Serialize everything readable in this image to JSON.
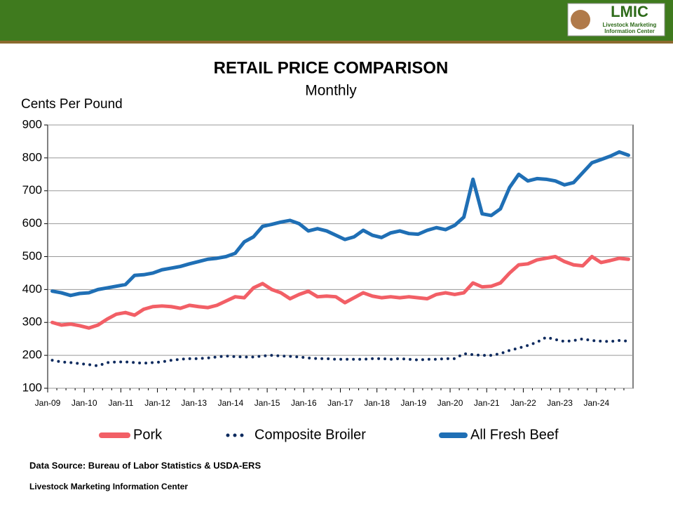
{
  "header": {
    "logo": {
      "name": "LMIC",
      "line1": "Livestock Marketing",
      "line2": "Information Center"
    }
  },
  "chart_data": {
    "type": "line",
    "title": "RETAIL PRICE COMPARISON",
    "subtitle": "Monthly",
    "y_label": "Cents Per Pound",
    "categories": [
      "Jan-09",
      null,
      null,
      null,
      "Jan-10",
      null,
      null,
      null,
      "Jan-11",
      null,
      null,
      null,
      "Jan-12",
      null,
      null,
      null,
      "Jan-13",
      null,
      null,
      null,
      "Jan-14",
      null,
      null,
      null,
      "Jan-15",
      null,
      null,
      null,
      "Jan-16",
      null,
      null,
      null,
      "Jan-17",
      null,
      null,
      null,
      "Jan-18",
      null,
      null,
      null,
      "Jan-19",
      null,
      null,
      null,
      "Jan-20",
      null,
      null,
      null,
      "Jan-21",
      null,
      null,
      null,
      "Jan-22",
      null,
      null,
      null,
      "Jan-23",
      null,
      null,
      null,
      "Jan-24",
      null,
      null,
      null
    ],
    "series": [
      {
        "name": "Pork",
        "color": "#f25f66",
        "style": "solid",
        "values": [
          300,
          292,
          295,
          290,
          283,
          292,
          310,
          325,
          330,
          322,
          340,
          348,
          350,
          348,
          343,
          352,
          348,
          345,
          352,
          365,
          378,
          375,
          405,
          418,
          400,
          390,
          372,
          385,
          395,
          378,
          380,
          378,
          360,
          375,
          390,
          380,
          375,
          378,
          375,
          378,
          375,
          372,
          385,
          390,
          385,
          390,
          420,
          408,
          410,
          420,
          450,
          475,
          478,
          490,
          495,
          500,
          485,
          475,
          472,
          500,
          482,
          488,
          495,
          492
        ]
      },
      {
        "name": "Composite Broiler",
        "color": "#0d2a5e",
        "style": "dotted",
        "values": [
          185,
          180,
          178,
          175,
          172,
          168,
          178,
          180,
          180,
          178,
          176,
          178,
          180,
          185,
          188,
          190,
          190,
          192,
          195,
          198,
          196,
          195,
          195,
          198,
          200,
          198,
          197,
          195,
          192,
          190,
          190,
          188,
          188,
          188,
          188,
          190,
          190,
          188,
          190,
          188,
          186,
          188,
          188,
          190,
          190,
          205,
          202,
          200,
          200,
          205,
          215,
          222,
          230,
          240,
          255,
          248,
          242,
          245,
          250,
          245,
          243,
          242,
          245,
          243
        ]
      },
      {
        "name": "All Fresh Beef",
        "color": "#1f6fb5",
        "style": "solid",
        "values": [
          395,
          390,
          382,
          388,
          390,
          400,
          405,
          410,
          415,
          443,
          445,
          450,
          460,
          465,
          470,
          478,
          485,
          492,
          495,
          500,
          510,
          545,
          560,
          592,
          598,
          605,
          610,
          600,
          578,
          585,
          578,
          565,
          552,
          560,
          580,
          565,
          558,
          572,
          578,
          570,
          568,
          580,
          588,
          582,
          595,
          620,
          735,
          630,
          625,
          645,
          710,
          750,
          730,
          737,
          735,
          730,
          718,
          725,
          755,
          785,
          795,
          805,
          818,
          808
        ]
      }
    ],
    "ylim": [
      100,
      900
    ],
    "yticks": [
      100,
      200,
      300,
      400,
      500,
      600,
      700,
      800,
      900
    ],
    "grid": true,
    "legend": "bottom"
  },
  "footer": {
    "source": "Data Source: Bureau of Labor Statistics & USDA-ERS",
    "org": "Livestock Marketing Information Center"
  }
}
